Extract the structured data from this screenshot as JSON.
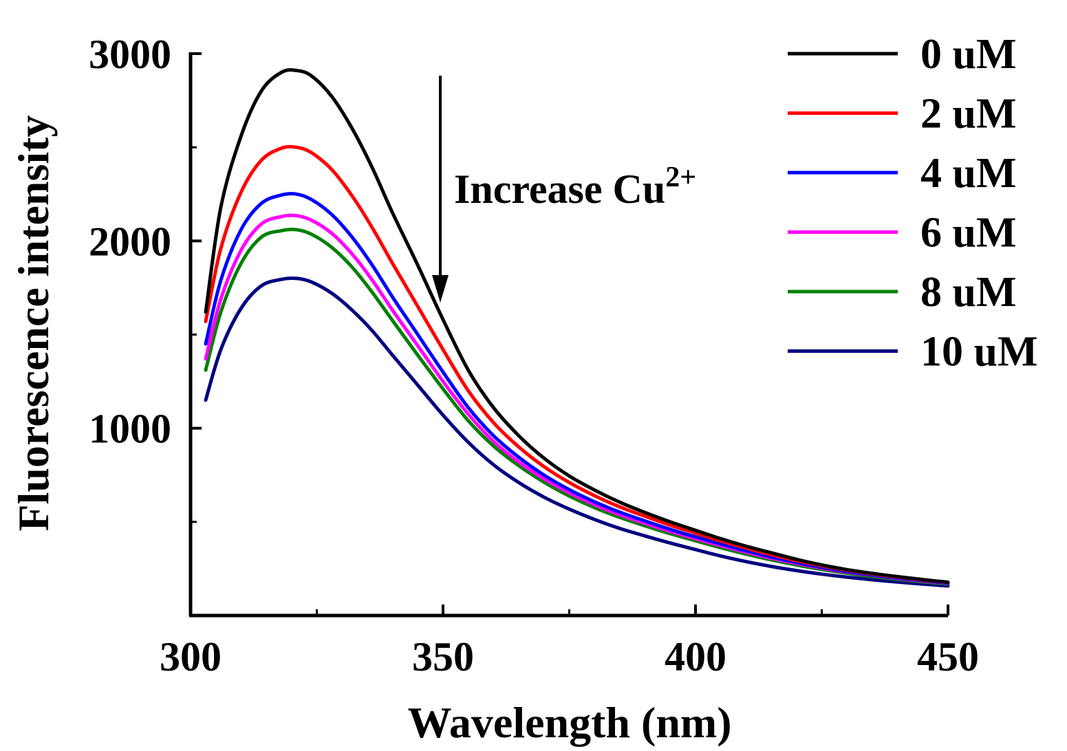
{
  "chart_data": {
    "type": "line",
    "title": "",
    "xlabel": "Wavelength (nm)",
    "ylabel": "Fluorescence intensity",
    "xlim": [
      300,
      450
    ],
    "ylim": [
      0,
      3000
    ],
    "xticks": [
      300,
      350,
      400,
      450
    ],
    "xtick_labels": [
      "300",
      "350",
      "400",
      "450"
    ],
    "yticks": [
      1000,
      2000,
      3000
    ],
    "ytick_labels": [
      "1000",
      "2000",
      "3000"
    ],
    "x": [
      303,
      306,
      310,
      314,
      318,
      321,
      324,
      328,
      332,
      336,
      340,
      345,
      350,
      355,
      360,
      365,
      370,
      375,
      380,
      385,
      390,
      395,
      400,
      405,
      410,
      415,
      420,
      425,
      430,
      435,
      440,
      445,
      450
    ],
    "series": [
      {
        "name": "0 uM",
        "color": "#000000",
        "values": [
          1620,
          2180,
          2560,
          2800,
          2900,
          2910,
          2880,
          2770,
          2600,
          2390,
          2150,
          1870,
          1580,
          1310,
          1110,
          960,
          840,
          745,
          670,
          605,
          550,
          500,
          455,
          410,
          370,
          335,
          300,
          270,
          245,
          225,
          208,
          192,
          178
        ]
      },
      {
        "name": "2 uM",
        "color": "#ff0000",
        "values": [
          1570,
          1960,
          2260,
          2430,
          2495,
          2500,
          2470,
          2380,
          2240,
          2070,
          1880,
          1650,
          1420,
          1200,
          1030,
          900,
          795,
          710,
          640,
          580,
          530,
          482,
          440,
          398,
          360,
          325,
          293,
          265,
          242,
          222,
          205,
          190,
          177
        ]
      },
      {
        "name": "4 uM",
        "color": "#0000ff",
        "values": [
          1450,
          1790,
          2060,
          2200,
          2245,
          2250,
          2220,
          2140,
          2020,
          1870,
          1700,
          1500,
          1300,
          1110,
          960,
          845,
          750,
          672,
          607,
          552,
          505,
          460,
          420,
          382,
          345,
          312,
          283,
          257,
          235,
          216,
          200,
          186,
          173
        ]
      },
      {
        "name": "6 uM",
        "color": "#ff00ff",
        "values": [
          1370,
          1690,
          1950,
          2090,
          2130,
          2135,
          2110,
          2040,
          1930,
          1790,
          1630,
          1440,
          1250,
          1075,
          930,
          820,
          730,
          655,
          592,
          538,
          492,
          449,
          410,
          373,
          338,
          306,
          278,
          253,
          232,
          214,
          198,
          184,
          172
        ]
      },
      {
        "name": "8 uM",
        "color": "#008000",
        "values": [
          1310,
          1620,
          1880,
          2020,
          2055,
          2060,
          2035,
          1965,
          1860,
          1725,
          1575,
          1390,
          1210,
          1040,
          905,
          800,
          712,
          638,
          576,
          524,
          479,
          437,
          399,
          362,
          328,
          297,
          270,
          246,
          226,
          208,
          193,
          180,
          168
        ]
      },
      {
        "name": "10 uM",
        "color": "#000080",
        "values": [
          1150,
          1420,
          1640,
          1760,
          1795,
          1800,
          1780,
          1720,
          1630,
          1520,
          1390,
          1230,
          1070,
          925,
          805,
          710,
          632,
          568,
          513,
          465,
          425,
          387,
          352,
          318,
          288,
          262,
          240,
          221,
          205,
          191,
          179,
          168,
          158
        ]
      }
    ],
    "legend_position": "top-right",
    "annotation": {
      "text": "Increase Cu",
      "superscript": "2+"
    }
  }
}
